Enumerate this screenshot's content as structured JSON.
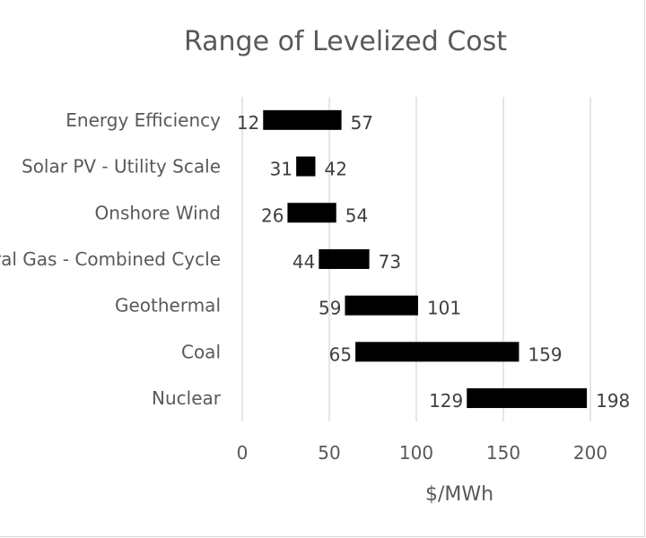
{
  "chart_data": {
    "type": "bar",
    "title": "Range of Levelized Cost",
    "xlabel": "$/MWh",
    "ylabel": "",
    "categories": [
      "Energy Efficiency",
      "Solar PV - Utility Scale",
      "Onshore Wind",
      "Natural Gas - Combined Cycle",
      "Geothermal",
      "Coal",
      "Nuclear"
    ],
    "series": [
      {
        "role": "low",
        "values": [
          12,
          31,
          26,
          44,
          59,
          65,
          129
        ]
      },
      {
        "role": "high",
        "values": [
          57,
          42,
          54,
          73,
          101,
          159,
          198
        ]
      }
    ],
    "xlim": [
      0,
      200
    ],
    "x_ticks": [
      0,
      50,
      100,
      150,
      200
    ],
    "orientation": "horizontal",
    "bar_color": "#000000",
    "grid": true,
    "legend": "none"
  }
}
